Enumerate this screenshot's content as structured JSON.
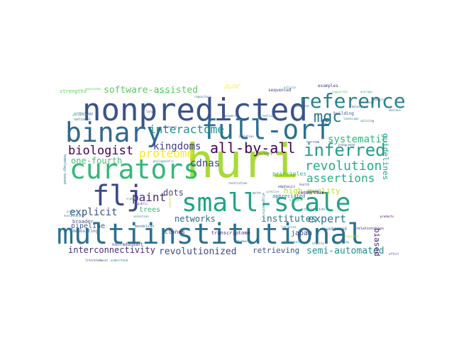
{
  "word_cloud": {
    "background": "#ffffff",
    "words": [
      {
        "text": "huri",
        "color": "#a8db34"
      },
      {
        "text": "multiinstitutional",
        "color": "#2c718e"
      },
      {
        "text": "nonpredicted",
        "color": "#3b528b"
      },
      {
        "text": "curators",
        "color": "#35b779"
      },
      {
        "text": "binary",
        "color": "#31688e"
      },
      {
        "text": "full-orf",
        "color": "#2d708e"
      },
      {
        "text": "flj",
        "color": "#3f4788"
      },
      {
        "text": "small-scale",
        "color": "#20a486"
      },
      {
        "text": "reference",
        "color": "#26828e"
      },
      {
        "text": "interactome",
        "color": "#21918c"
      },
      {
        "text": "mgc",
        "color": "#2a788e"
      },
      {
        "text": "inferred",
        "color": "#1f9e89"
      },
      {
        "text": "all-by-all",
        "color": "#440154"
      },
      {
        "text": "kingdoms",
        "color": "#433e85"
      },
      {
        "text": "cdnas",
        "color": "#3e4a89"
      },
      {
        "text": "biologist",
        "color": "#440154"
      },
      {
        "text": "proteome",
        "color": "#fde725"
      },
      {
        "text": "revolution",
        "color": "#25ac82"
      },
      {
        "text": "assertions",
        "color": "#28ae80"
      },
      {
        "text": "paint",
        "color": "#482878"
      },
      {
        "text": "one-fourth",
        "color": "#44bf70"
      },
      {
        "text": "explicit",
        "color": "#3b528b"
      },
      {
        "text": "dots",
        "color": "#414487"
      },
      {
        "text": "systematic",
        "color": "#35b779"
      },
      {
        "text": "software-assisted",
        "color": "#5ec962"
      },
      {
        "text": "high-quality",
        "color": "#b5de2b"
      },
      {
        "text": "expert",
        "color": "#2a788e"
      },
      {
        "text": "institutes",
        "color": "#2c728e"
      },
      {
        "text": "networks",
        "color": "#31688e"
      },
      {
        "text": "revolutionized",
        "color": "#3e4a89"
      },
      {
        "text": "retrieving",
        "color": "#3b528b"
      },
      {
        "text": "semi-automated",
        "color": "#21918c"
      },
      {
        "text": "interconnectivity",
        "color": "#472d7b"
      },
      {
        "text": "pipeline",
        "color": "#38598c"
      },
      {
        "text": "trees",
        "color": "#35b779"
      },
      {
        "text": "clones",
        "color": "#443983"
      },
      {
        "text": "biased",
        "color": "#482173"
      },
      {
        "text": "guidelines",
        "color": "#1f9e89"
      },
      {
        "text": "japan",
        "color": "#404688"
      },
      {
        "text": "strengths",
        "color": "#5ec962"
      },
      {
        "text": "building",
        "color": "#3b528b"
      },
      {
        "text": "collection",
        "color": "#26828e"
      },
      {
        "text": "appreciated",
        "color": "#2a788e"
      },
      {
        "text": "principles",
        "color": "#35b779"
      },
      {
        "text": "broader",
        "color": "#3e4a89"
      },
      {
        "text": "depositing",
        "color": "#31688e"
      },
      {
        "text": "consortium",
        "color": "#440154"
      },
      {
        "text": "transcriptome",
        "color": "#482878"
      },
      {
        "text": "nonredundant",
        "color": "#443983"
      },
      {
        "text": "mendelian",
        "color": "#2c728e"
      },
      {
        "text": "unbiased",
        "color": "#31688e"
      },
      {
        "text": "relationships",
        "color": "#482878"
      },
      {
        "text": "examples",
        "color": "#414487"
      },
      {
        "text": "orthology",
        "color": "#38598c"
      },
      {
        "text": "sequenced",
        "color": "#3e4a89"
      },
      {
        "text": "emphasis",
        "color": "#3b528b"
      },
      {
        "text": "alignments",
        "color": "#21918c"
      },
      {
        "text": "homology-based",
        "color": "#2a788e"
      },
      {
        "text": "national",
        "color": "#2c728e"
      },
      {
        "text": "genome",
        "color": "#31688e"
      },
      {
        "text": "generated",
        "color": "#5ec962"
      },
      {
        "text": "gr-rich",
        "color": "#fde725"
      },
      {
        "text": "narrow",
        "color": "#3e4a89"
      },
      {
        "text": "ects",
        "color": "#31688e"
      },
      {
        "text": "phylogenetic",
        "color": "#21918c"
      },
      {
        "text": "variation",
        "color": "#35b779"
      },
      {
        "text": "accurately",
        "color": "#3b528b"
      },
      {
        "text": "candidate",
        "color": "#b5de2b"
      },
      {
        "text": "slight",
        "color": "#35b779"
      },
      {
        "text": "landscape",
        "color": "#21918c"
      },
      {
        "text": "literature",
        "color": "#443983"
      },
      {
        "text": "reveal",
        "color": "#31688e"
      },
      {
        "text": "understood",
        "color": "#2a788e"
      },
      {
        "text": "effort",
        "color": "#3b528b"
      },
      {
        "text": "project",
        "color": "#1f9e89"
      },
      {
        "text": "evolutionary",
        "color": "#26828e"
      },
      {
        "text": "integrated",
        "color": "#3e4a89"
      },
      {
        "text": "strategy",
        "color": "#31688e"
      },
      {
        "text": "obvious",
        "color": "#2c728e"
      },
      {
        "text": "article",
        "color": "#21918c"
      },
      {
        "text": "supported",
        "color": "#5ec962"
      },
      {
        "text": "genomic",
        "color": "#3b528b"
      },
      {
        "text": "average",
        "color": "#35b779"
      },
      {
        "text": "products",
        "color": "#440154"
      },
      {
        "text": "health",
        "color": "#3e4a89"
      },
      {
        "text": "utility",
        "color": "#31688e"
      },
      {
        "text": "precise",
        "color": "#21918c"
      },
      {
        "text": "restriction",
        "color": "#3b528b"
      },
      {
        "text": "outcomes",
        "color": "#2c728e"
      },
      {
        "text": "expanded",
        "color": "#b5de2b"
      },
      {
        "text": "splicing",
        "color": "#31688e"
      },
      {
        "text": "isolation",
        "color": "#3e4a89"
      },
      {
        "text": "answers",
        "color": "#3b528b"
      },
      {
        "text": "creating",
        "color": "#21918c"
      },
      {
        "text": "public",
        "color": "#414487"
      },
      {
        "text": "enable",
        "color": "#35b779"
      },
      {
        "text": "selection",
        "color": "#26828e"
      },
      {
        "text": "large",
        "color": "#3e4a89"
      },
      {
        "text": "abstract",
        "color": "#443983"
      },
      {
        "text": "libraries",
        "color": "#2a788e"
      },
      {
        "text": "resulting",
        "color": "#31688e"
      },
      {
        "text": "database",
        "color": "#38598c"
      },
      {
        "text": "facilitate",
        "color": "#21918c"
      },
      {
        "text": "timeline",
        "color": "#5ec962"
      },
      {
        "text": "repository",
        "color": "#31688e"
      },
      {
        "text": "molecules",
        "color": "#3e4a89"
      },
      {
        "text": "proposed",
        "color": "#fde725"
      }
    ]
  }
}
